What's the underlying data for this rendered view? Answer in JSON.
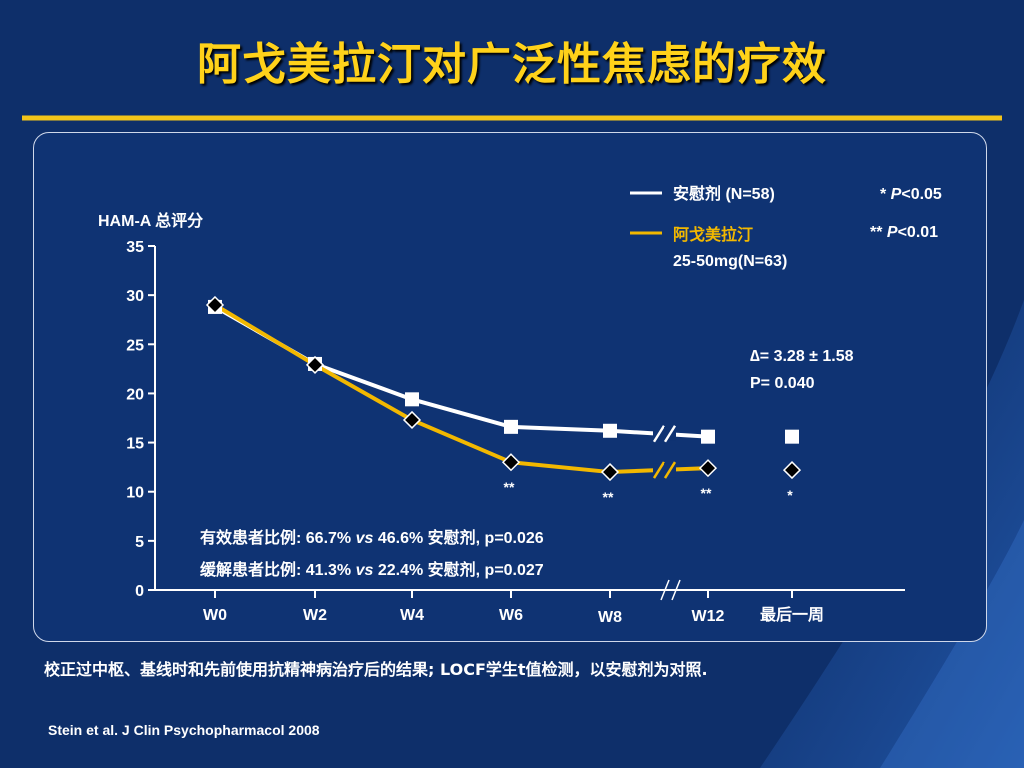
{
  "title": "阿戈美拉汀对广泛性焦虑的疗效",
  "chart_data": {
    "type": "line",
    "ylabel": "HAM-A 总评分",
    "categories": [
      "W0",
      "W2",
      "W4",
      "W6",
      "W8",
      "W12",
      "最后一周"
    ],
    "ylim": [
      0,
      35
    ],
    "yticks": [
      0,
      5,
      10,
      15,
      20,
      25,
      30,
      35
    ],
    "series": [
      {
        "name": "安慰剂 (N=58)",
        "color": "#ffffff",
        "marker": "square",
        "values": [
          28.8,
          23.0,
          19.4,
          16.6,
          16.2,
          15.6,
          15.6
        ]
      },
      {
        "name_line1": "阿戈美拉汀",
        "name_line2": "25-50mg(N=63)",
        "color": "#f2b800",
        "marker": "diamond",
        "values": [
          29.0,
          22.9,
          17.3,
          13.0,
          12.0,
          12.4,
          12.2
        ]
      }
    ],
    "significance": [
      {
        "category": "W6",
        "label": "**"
      },
      {
        "category": "W8",
        "label": "**"
      },
      {
        "category": "W12",
        "label": "**"
      },
      {
        "category": "最后一周",
        "label": "*"
      }
    ],
    "sig_legend": {
      "line1_stars": "* ",
      "line1_p": "P",
      "line1_rest": "<0.05",
      "line2_stars": "** ",
      "line2_p": "P",
      "line2_rest": "<0.01"
    },
    "delta_line1": "∆= 3.28 ± 1.58",
    "delta_line2": "P= 0.040",
    "response": {
      "a": "有效患者比例: 66.7% ",
      "vs": "vs",
      "b": " 46.6% 安慰剂, p=0.026"
    },
    "remission": {
      "a": "缓解患者比例: 41.3% ",
      "vs": "vs",
      "b": " 22.4% 安慰剂, p=0.027"
    }
  },
  "footnote": "校正过中枢、基线时和先前使用抗精神病治疗后的结果; LOCF学生t值检测，以安慰剂为对照.",
  "citation": "Stein et al. J Clin Psychopharmacol 2008",
  "colors": {
    "background": "#0e2f6a",
    "accent": "#ffd21a",
    "agomelatine": "#f2b800",
    "placebo": "#ffffff"
  }
}
